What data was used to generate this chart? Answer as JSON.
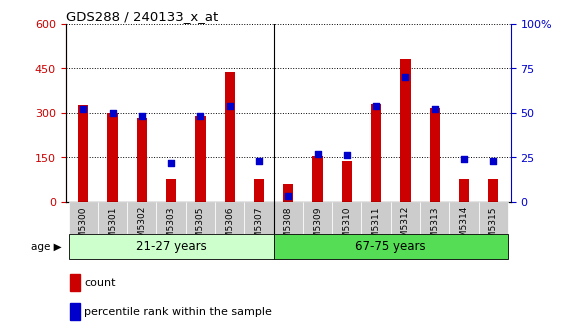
{
  "title": "GDS288 / 240133_x_at",
  "samples": [
    "GSM5300",
    "GSM5301",
    "GSM5302",
    "GSM5303",
    "GSM5305",
    "GSM5306",
    "GSM5307",
    "GSM5308",
    "GSM5309",
    "GSM5310",
    "GSM5311",
    "GSM5312",
    "GSM5313",
    "GSM5314",
    "GSM5315"
  ],
  "counts": [
    325,
    298,
    283,
    75,
    288,
    438,
    78,
    60,
    155,
    138,
    330,
    480,
    315,
    78,
    78
  ],
  "percentiles": [
    52,
    50,
    48,
    22,
    48,
    54,
    23,
    3,
    27,
    26,
    54,
    70,
    52,
    24,
    23
  ],
  "group1_label": "21-27 years",
  "group1_count": 7,
  "group2_label": "67-75 years",
  "group2_count": 8,
  "age_label": "age",
  "bar_color": "#cc0000",
  "dot_color": "#0000cc",
  "ylim_left": [
    0,
    600
  ],
  "ylim_right": [
    0,
    100
  ],
  "yticks_left": [
    0,
    150,
    300,
    450,
    600
  ],
  "yticks_right": [
    0,
    25,
    50,
    75,
    100
  ],
  "legend_count": "count",
  "legend_pct": "percentile rank within the sample",
  "group1_color": "#ccffcc",
  "group2_color": "#55dd55",
  "bar_width": 0.35,
  "tick_bg_color": "#cccccc"
}
